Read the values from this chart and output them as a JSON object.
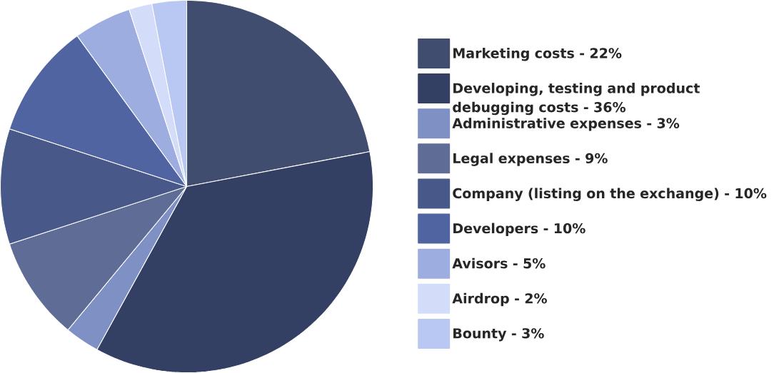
{
  "chart_data": {
    "type": "pie",
    "categories": [
      "Marketing costs - 22%",
      "Developing, testing and product debugging costs - 36%",
      "Administrative expenses - 3%",
      "Legal expenses - 9%",
      "Company (listing on the exchange) - 10%",
      "Developers - 10%",
      "Avisors - 5%",
      "Airdrop - 2%",
      "Bounty - 3%"
    ],
    "values": [
      22,
      36,
      3,
      9,
      10,
      10,
      5,
      2,
      3
    ],
    "colors": [
      "#404d6e",
      "#333f63",
      "#7f90c4",
      "#5f6d96",
      "#485889",
      "#4f64a0",
      "#9dade0",
      "#d3dcf8",
      "#b8c8f2"
    ],
    "legend": "right"
  }
}
